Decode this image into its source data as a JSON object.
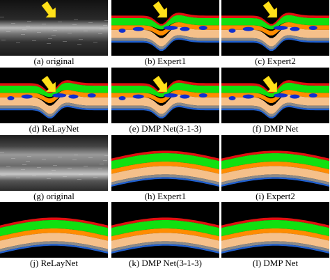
{
  "captions": [
    "(a) original",
    "(b) Expert1",
    "(c) Expert2",
    "(d) ReLayNet",
    "(e) DMP Net(3-1-3)",
    "(f) DMP Net",
    "(g) original",
    "(h) Expert1",
    "(i) Expert2",
    "(j) ReLayNet",
    "(k) DMP Net(3-1-3)",
    "(l) DMP Net"
  ]
}
